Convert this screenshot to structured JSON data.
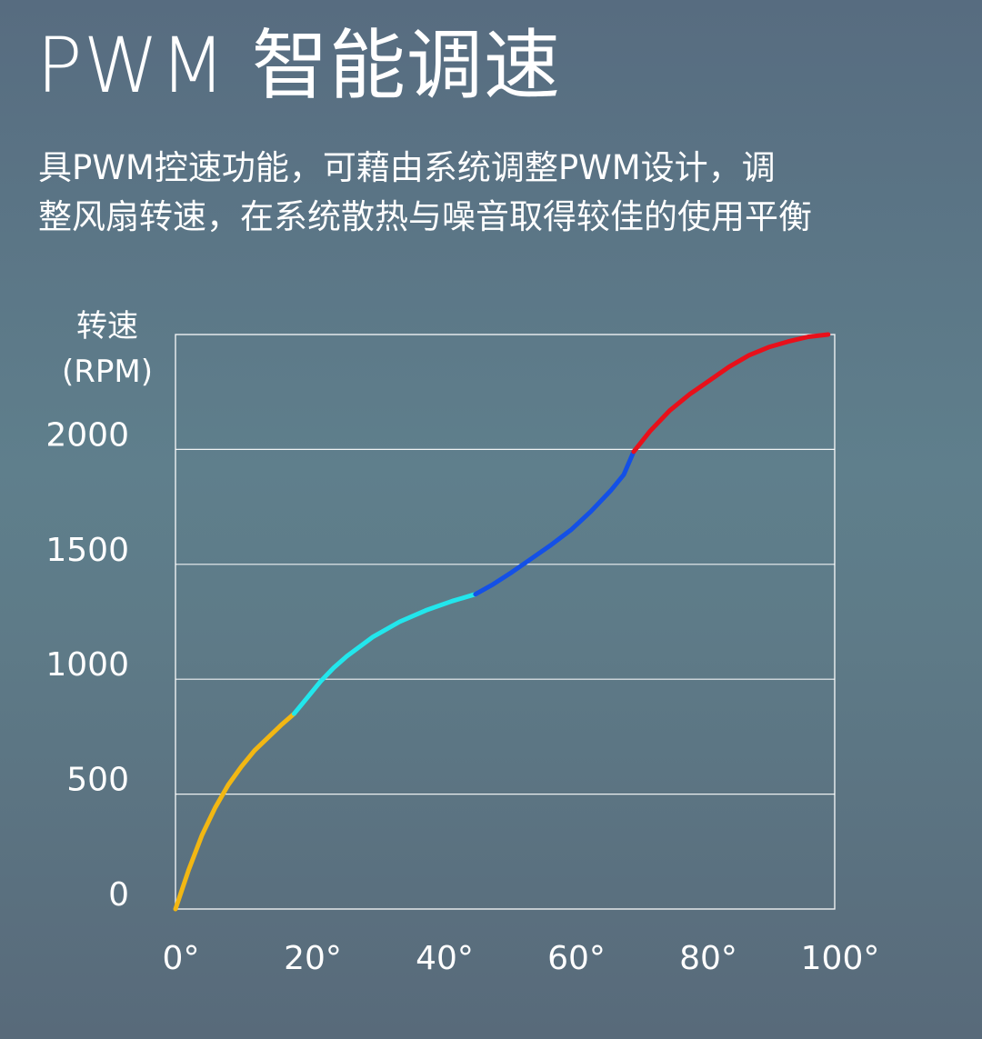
{
  "header": {
    "title": "PWM 智能调速",
    "description_line1": "具PWM控速功能，可藉由系统调整PWM设计，调",
    "description_line2": "整风扇转速，在系统散热与噪音取得较佳的使用平衡"
  },
  "chart_data": {
    "type": "line",
    "title": "",
    "ylabel_line1": "转速",
    "ylabel_line2": "(RPM)",
    "xlabel": "",
    "xlim": [
      0,
      100
    ],
    "ylim": [
      0,
      2500
    ],
    "x_ticks": [
      "0°",
      "20°",
      "40°",
      "60°",
      "80°",
      "100°"
    ],
    "x_tick_values": [
      0,
      20,
      40,
      60,
      80,
      100
    ],
    "y_ticks": [
      "0",
      "500",
      "1000",
      "1500",
      "2000"
    ],
    "y_tick_values": [
      0,
      500,
      1000,
      1500,
      2000
    ],
    "grid": true,
    "series": [
      {
        "color": "#f2b713",
        "x": [
          0,
          2,
          4,
          6,
          8,
          10,
          12,
          14,
          16,
          18
        ],
        "y": [
          0,
          170,
          320,
          440,
          540,
          620,
          690,
          745,
          800,
          850
        ]
      },
      {
        "color": "#22e6ec",
        "x": [
          18,
          20,
          22,
          24,
          26,
          30,
          34,
          38,
          42,
          45.5
        ],
        "y": [
          850,
          920,
          990,
          1050,
          1100,
          1185,
          1250,
          1300,
          1340,
          1370
        ]
      },
      {
        "color": "#1450e6",
        "x": [
          45.5,
          48,
          51,
          54,
          57,
          60,
          63,
          66,
          68,
          69.5
        ],
        "y": [
          1370,
          1410,
          1465,
          1525,
          1585,
          1650,
          1730,
          1820,
          1890,
          1990
        ]
      },
      {
        "color": "#e8101a",
        "x": [
          69.5,
          72,
          75,
          78,
          81,
          84,
          87,
          90,
          93,
          96,
          99
        ],
        "y": [
          1990,
          2080,
          2170,
          2240,
          2300,
          2360,
          2410,
          2445,
          2470,
          2490,
          2500
        ]
      }
    ]
  }
}
